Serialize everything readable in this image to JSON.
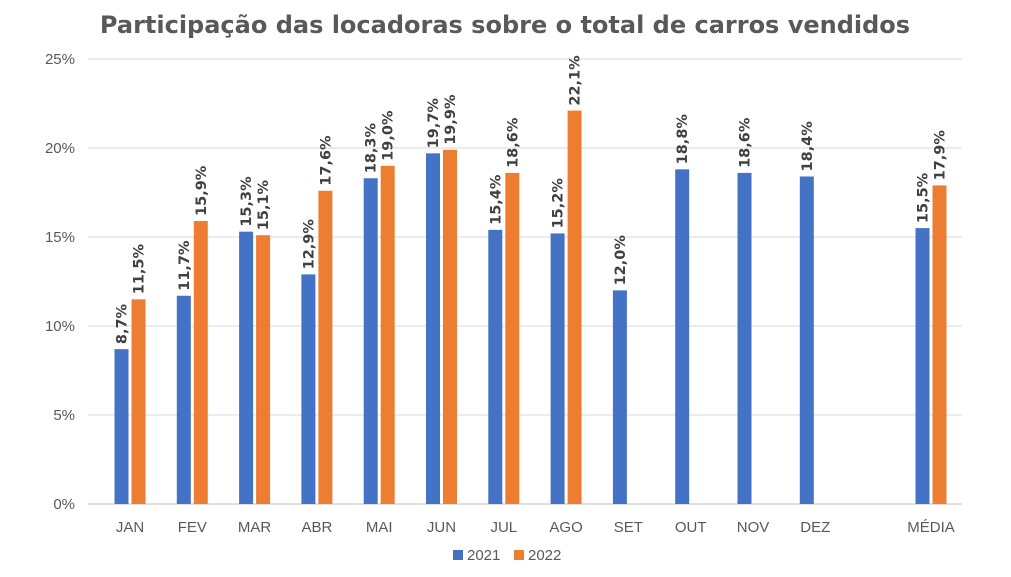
{
  "chart_data": {
    "type": "bar",
    "title": "Participação das locadoras sobre o total de carros vendidos",
    "categories": [
      "JAN",
      "FEV",
      "MAR",
      "ABR",
      "MAI",
      "JUN",
      "JUL",
      "AGO",
      "SET",
      "OUT",
      "NOV",
      "DEZ",
      "MÉDIA"
    ],
    "series": [
      {
        "name": "2021",
        "color": "#4472C4",
        "values": [
          8.7,
          11.7,
          15.3,
          12.9,
          18.3,
          19.7,
          15.4,
          15.2,
          12.0,
          18.8,
          18.6,
          18.4,
          15.5
        ],
        "labels": [
          "8,7%",
          "11,7%",
          "15,3%",
          "12,9%",
          "18,3%",
          "19,7%",
          "15,4%",
          "15,2%",
          "12,0%",
          "18,8%",
          "18,6%",
          "18,4%",
          "15,5%"
        ]
      },
      {
        "name": "2022",
        "color": "#ED7D31",
        "values": [
          11.5,
          15.9,
          15.1,
          17.6,
          19.0,
          19.9,
          18.6,
          22.1,
          null,
          null,
          null,
          null,
          17.9
        ],
        "labels": [
          "11,5%",
          "15,9%",
          "15,1%",
          "17,6%",
          "19,0%",
          "19,9%",
          "18,6%",
          "22,1%",
          null,
          null,
          null,
          null,
          "17,9%"
        ]
      }
    ],
    "yticks": [
      "0%",
      "5%",
      "10%",
      "15%",
      "20%",
      "25%"
    ],
    "ylim": [
      0,
      25
    ],
    "grid": true,
    "legend": "bottom"
  }
}
